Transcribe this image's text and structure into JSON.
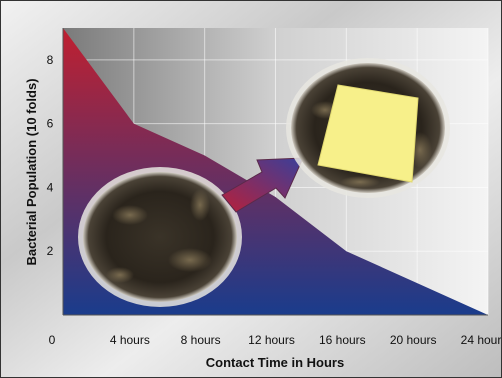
{
  "chart_data": {
    "type": "area",
    "xlabel": "Contact Time in Hours",
    "ylabel": "Bacterial Population (10 folds)",
    "x_values": [
      0,
      4,
      8,
      12,
      16,
      20,
      24
    ],
    "y_values": [
      9,
      6,
      5,
      3.7,
      2,
      1,
      0
    ],
    "x_tick_labels": [
      "0",
      "4 hours",
      "8 hours",
      "12 hours",
      "16 hours",
      "20 hours",
      "24 hours"
    ],
    "y_ticks": [
      2,
      4,
      6,
      8
    ],
    "xlim": [
      0,
      24
    ],
    "ylim": [
      0,
      9
    ],
    "grid": true,
    "colors": {
      "top": "#c02030",
      "bottom": "#1a3c8c",
      "arrow_start": "#b8203a",
      "arrow_end": "#3a3f9a",
      "note": "#f7f08a"
    }
  }
}
